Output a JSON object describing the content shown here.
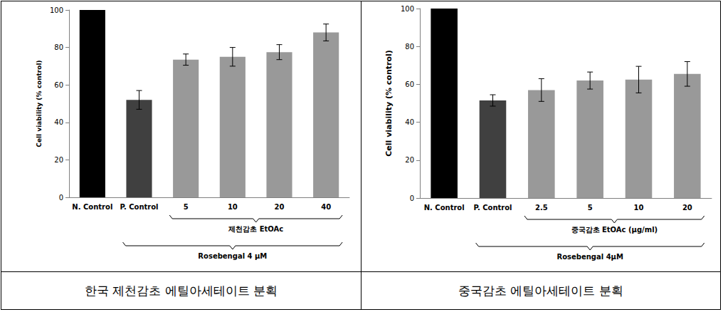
{
  "chart_data": [
    {
      "type": "bar",
      "title": "한국 제천감초 에틸아세테이트 분획",
      "y_label": "Cell viability (% control)",
      "categories": [
        "N. Control",
        "P. Control",
        "5",
        "10",
        "20",
        "40"
      ],
      "values": [
        100,
        52,
        73.5,
        75,
        77.5,
        88
      ],
      "errors": [
        0.5,
        5,
        3,
        5,
        4,
        4.5
      ],
      "colors": [
        "#000000",
        "#404040",
        "#999999",
        "#999999",
        "#999999",
        "#999999"
      ],
      "ylim": [
        0,
        100
      ],
      "yticks": [
        0,
        20,
        40,
        60,
        80,
        100
      ],
      "grid": false,
      "annotations": [
        {
          "text": "제천감초 EtOAc",
          "from": "5",
          "to": "40"
        },
        {
          "text": "Rosebengal 4 μM",
          "from": "P. Control",
          "to": "40"
        }
      ]
    },
    {
      "type": "bar",
      "title": "중국감초 에틸아세테이트 분획",
      "y_label": "Cell viability (% control)",
      "categories": [
        "N. Control",
        "P. Control",
        "2.5",
        "5",
        "10",
        "20"
      ],
      "values": [
        100,
        51.5,
        57,
        62,
        62.5,
        65.5
      ],
      "errors": [
        0,
        3,
        6,
        4.5,
        7,
        6.5
      ],
      "colors": [
        "#000000",
        "#404040",
        "#999999",
        "#999999",
        "#999999",
        "#999999"
      ],
      "ylim": [
        0,
        100
      ],
      "yticks": [
        0,
        20,
        40,
        60,
        80,
        100
      ],
      "grid": false,
      "annotations": [
        {
          "text": "중국감초 EtOAc (μg/ml)",
          "from": "2.5",
          "to": "20"
        },
        {
          "text": "Rosebengal 4μM",
          "from": "P. Control",
          "to": "20"
        }
      ]
    }
  ]
}
